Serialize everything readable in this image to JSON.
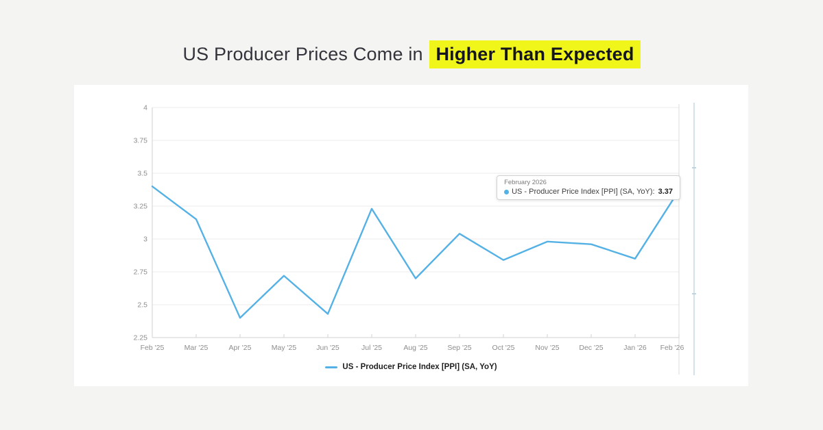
{
  "title": {
    "prefix": "US Producer Prices Come in",
    "highlight": "Higher Than Expected"
  },
  "colors": {
    "series": "#54b1e5",
    "highlight_bg": "#f1f61a",
    "grid": "#ebebeb",
    "axis": "#d2d2d2",
    "crosshair": "#dddddd",
    "tick_label": "#8d8d8d",
    "page_bg": "#f4f4f2",
    "card_bg": "#ffffff"
  },
  "chart_data": {
    "type": "line",
    "title": "",
    "xlabel": "",
    "ylabel": "",
    "x": [
      "Feb '25",
      "Mar '25",
      "Apr '25",
      "May '25",
      "Jun '25",
      "Jul '25",
      "Aug '25",
      "Sep '25",
      "Oct '25",
      "Nov '25",
      "Dec '25",
      "Jan '26",
      "Feb '26"
    ],
    "series": [
      {
        "name": "US - Producer Price Index [PPI] (SA, YoY)",
        "values": [
          3.4,
          3.15,
          2.4,
          2.72,
          2.43,
          3.23,
          2.7,
          3.04,
          2.84,
          2.98,
          2.96,
          2.85,
          3.37
        ]
      }
    ],
    "ylim": [
      2.25,
      4
    ],
    "y_ticks": [
      4,
      3.75,
      3.5,
      3.25,
      3,
      2.75,
      2.5,
      2.25
    ],
    "grid": true,
    "legend_position": "bottom"
  },
  "tooltip": {
    "date": "February 2026",
    "label": "US - Producer Price Index [PPI] (SA, YoY):",
    "value": "3.37"
  },
  "legend": {
    "label": "US - Producer Price Index [PPI] (SA, YoY)"
  }
}
